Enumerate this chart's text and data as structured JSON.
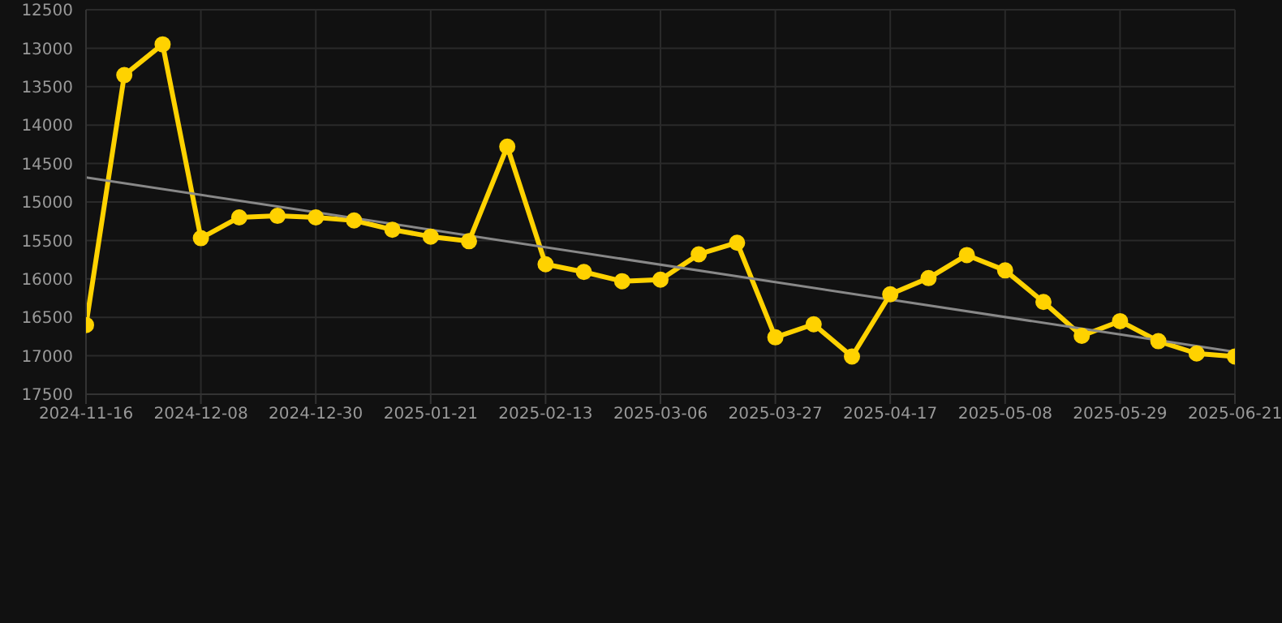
{
  "chart_data": {
    "type": "line",
    "categories": [
      "2024-11-16",
      null,
      null,
      "2024-12-08",
      null,
      null,
      "2024-12-30",
      null,
      null,
      "2025-01-21",
      null,
      null,
      "2025-02-13",
      null,
      null,
      "2025-03-06",
      null,
      null,
      "2025-03-27",
      null,
      null,
      "2025-04-17",
      null,
      null,
      "2025-05-08",
      null,
      null,
      "2025-05-29",
      null,
      null,
      "2025-06-21"
    ],
    "series": [
      {
        "color": "#ffd200",
        "values": [
          16600,
          13350,
          12950,
          15470,
          15200,
          15180,
          15200,
          15240,
          15360,
          15450,
          15510,
          14280,
          15810,
          15910,
          16030,
          16010,
          15680,
          15530,
          16760,
          16590,
          17010,
          16200,
          15990,
          15690,
          15890,
          16300,
          16740,
          16550,
          16810,
          16970,
          17010
        ]
      },
      {
        "type": "line",
        "color": "#888888",
        "marker": "none",
        "values": [
          14680,
          null,
          null,
          null,
          null,
          null,
          null,
          null,
          null,
          null,
          null,
          null,
          null,
          null,
          null,
          null,
          null,
          null,
          null,
          null,
          null,
          null,
          null,
          null,
          null,
          null,
          null,
          null,
          null,
          null,
          16950
        ]
      }
    ],
    "ylim": [
      17500,
      12500
    ],
    "yticks": [
      12500,
      13000,
      13500,
      14000,
      14500,
      15000,
      15500,
      16000,
      16500,
      17000,
      17500
    ],
    "grid": true,
    "marker": "circle",
    "line_style": "solid"
  }
}
